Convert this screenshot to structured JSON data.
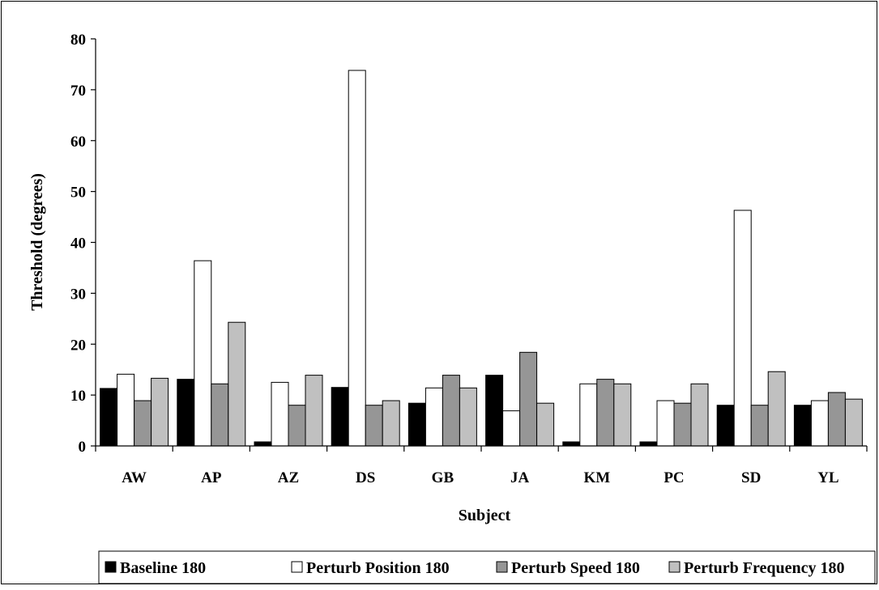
{
  "chart_data": {
    "type": "bar",
    "title": "",
    "xlabel": "Subject",
    "ylabel": "Threshold (degrees)",
    "ylim": [
      0,
      80
    ],
    "yticks": [
      0,
      10,
      20,
      30,
      40,
      50,
      60,
      70,
      80
    ],
    "grid": false,
    "legend_position": "bottom",
    "categories": [
      "AW",
      "AP",
      "AZ",
      "DS",
      "GB",
      "JA",
      "KM",
      "PC",
      "SD",
      "YL"
    ],
    "series": [
      {
        "name": "Baseline 180",
        "color": "#000000",
        "values": [
          11.3,
          13.1,
          0.8,
          11.5,
          8.4,
          13.9,
          0.8,
          0.8,
          8.0,
          8.0
        ]
      },
      {
        "name": "Perturb Position 180",
        "color": "#ffffff",
        "values": [
          14.1,
          36.4,
          12.5,
          73.8,
          11.4,
          6.9,
          12.2,
          8.9,
          46.3,
          8.9
        ]
      },
      {
        "name": "Perturb Speed 180",
        "color": "#969696",
        "values": [
          8.9,
          12.2,
          8.0,
          8.0,
          13.9,
          18.4,
          13.1,
          8.4,
          8.0,
          10.5
        ]
      },
      {
        "name": "Perturb Frequency 180",
        "color": "#c0c0c0",
        "values": [
          13.3,
          24.3,
          13.9,
          8.9,
          11.4,
          8.4,
          12.2,
          12.2,
          14.6,
          9.2
        ]
      }
    ]
  }
}
